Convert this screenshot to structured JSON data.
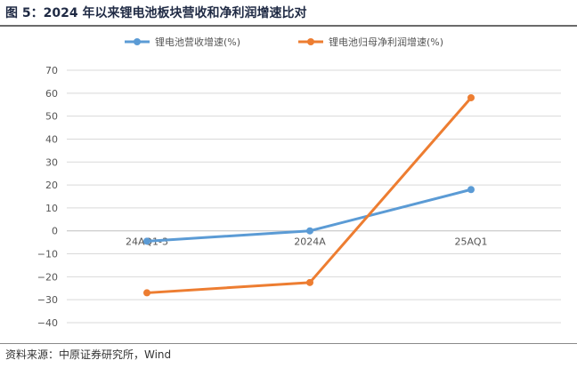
{
  "title": "图 5：2024 年以来锂电池板块营收和净利润增速比对",
  "source": "资料来源：中原证券研究所，Wind",
  "chart_data": {
    "type": "line",
    "categories": [
      "24AQ1-3",
      "2024A",
      "25AQ1"
    ],
    "series": [
      {
        "name": "锂电池营收增速(%)",
        "color": "#5b9bd5",
        "values": [
          -4.5,
          0,
          18
        ]
      },
      {
        "name": "锂电池归母净利润增速(%)",
        "color": "#ed7d31",
        "values": [
          -27,
          -22.5,
          58
        ]
      }
    ],
    "ylim": [
      -40,
      70
    ],
    "yticks": [
      70,
      60,
      50,
      40,
      30,
      20,
      10,
      0,
      -10,
      -20,
      -30,
      -40
    ],
    "grid": true,
    "legend": "top"
  }
}
